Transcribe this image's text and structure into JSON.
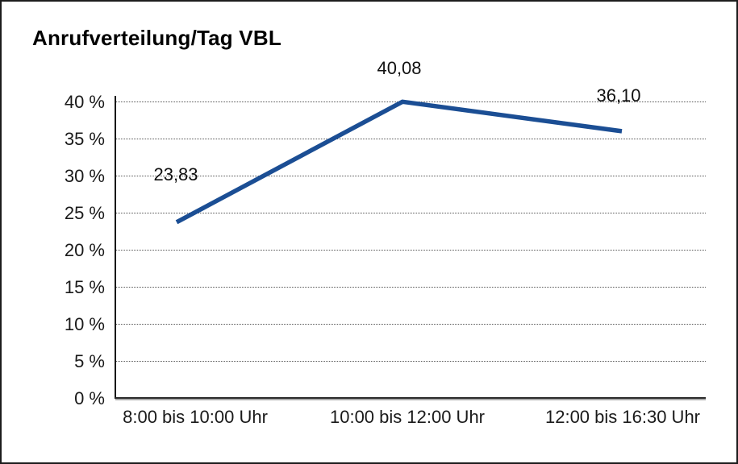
{
  "chart_data": {
    "type": "line",
    "title": "Anrufverteilung/Tag VBL",
    "categories": [
      "8:00 bis 10:00 Uhr",
      "10:00 bis 12:00 Uhr",
      "12:00 bis 16:30 Uhr"
    ],
    "values": [
      23.83,
      40.08,
      36.1
    ],
    "value_labels": [
      "23,83",
      "40,08",
      "36,10"
    ],
    "xlabel": "",
    "ylabel": "",
    "ylim": [
      0,
      40
    ],
    "ytick_step": 5,
    "yticks": [
      "0 %",
      "5 %",
      "10 %",
      "15 %",
      "20 %",
      "25 %",
      "30 %",
      "35 %",
      "40 %"
    ],
    "grid": "horizontal-dotted",
    "legend": "none",
    "line_color": "#1b4e94"
  }
}
